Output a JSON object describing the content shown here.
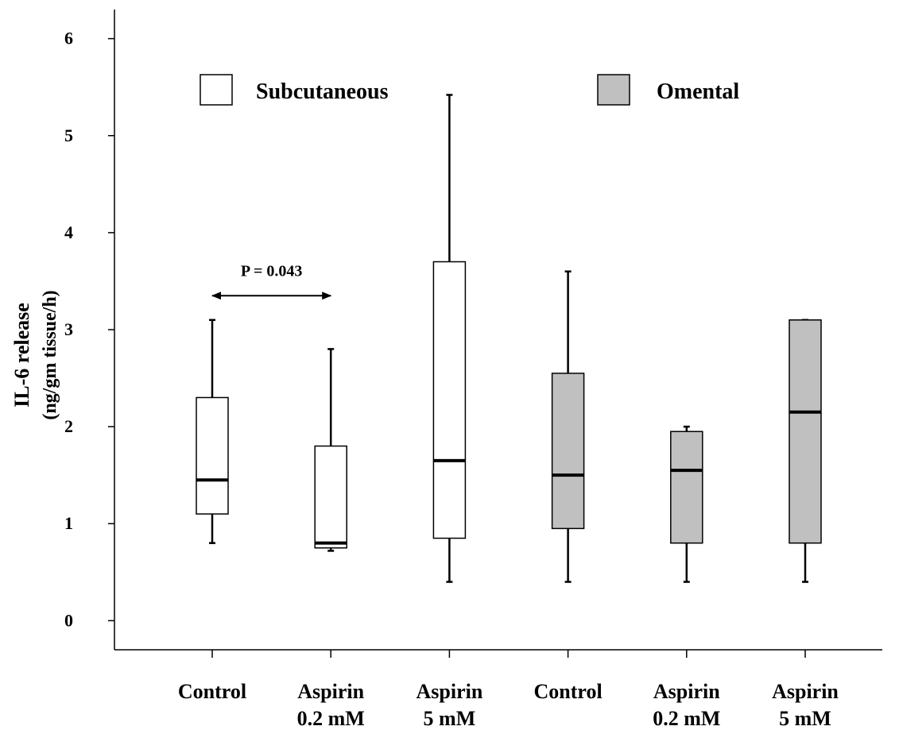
{
  "chart_data": {
    "type": "box",
    "ylabel": "IL-6 release",
    "ylabel_units": "(ng/gm tissue/h)",
    "xlabel": "",
    "ylim": [
      -0.3,
      6.3
    ],
    "yticks": [
      0,
      1,
      2,
      3,
      4,
      5,
      6
    ],
    "grid": false,
    "legend": {
      "placement": "top",
      "entries": [
        {
          "label": "Subcutaneous",
          "fill": "#ffffff"
        },
        {
          "label": "Omental",
          "fill": "#c0c0c0"
        }
      ]
    },
    "categories": [
      [
        "Control"
      ],
      [
        "Aspirin",
        "0.2 mM"
      ],
      [
        "Aspirin",
        "5 mM"
      ],
      [
        "Control"
      ],
      [
        "Aspirin",
        "0.2 mM"
      ],
      [
        "Aspirin",
        "5 mM"
      ]
    ],
    "boxes": [
      {
        "group": "Subcutaneous",
        "min": 0.8,
        "q1": 1.1,
        "median": 1.45,
        "q3": 2.3,
        "max": 3.1
      },
      {
        "group": "Subcutaneous",
        "min": 0.72,
        "q1": 0.75,
        "median": 0.8,
        "q3": 1.8,
        "max": 2.8
      },
      {
        "group": "Subcutaneous",
        "min": 0.4,
        "q1": 0.85,
        "median": 1.65,
        "q3": 3.7,
        "max": 5.42
      },
      {
        "group": "Omental",
        "min": 0.4,
        "q1": 0.95,
        "median": 1.5,
        "q3": 2.55,
        "max": 3.6
      },
      {
        "group": "Omental",
        "min": 0.4,
        "q1": 0.8,
        "median": 1.55,
        "q3": 1.95,
        "max": 2.0
      },
      {
        "group": "Omental",
        "min": 0.4,
        "q1": 0.8,
        "median": 2.15,
        "q3": 3.1,
        "max": 3.1
      }
    ],
    "annotations": [
      {
        "text": "P = 0.043",
        "from_category": 0,
        "to_category": 1,
        "y": 3.35
      }
    ]
  }
}
